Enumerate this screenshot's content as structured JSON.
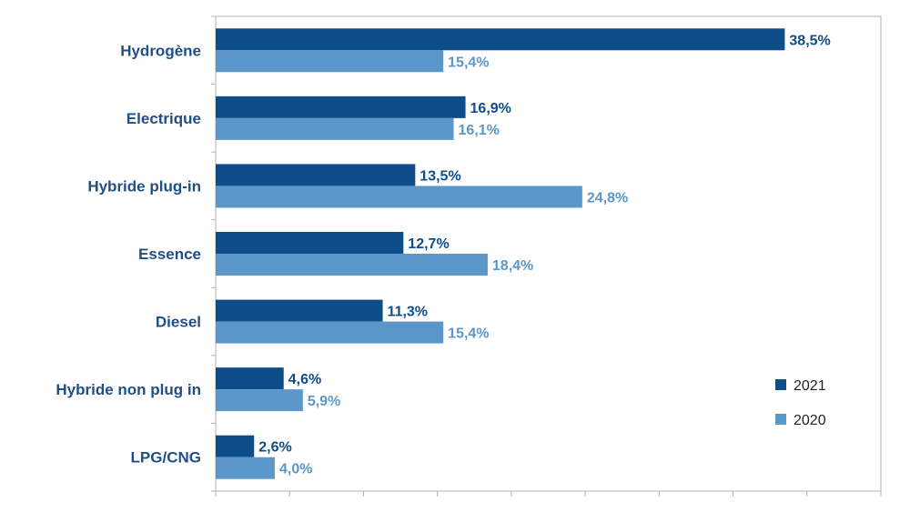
{
  "chart_data": {
    "type": "bar",
    "orientation": "horizontal",
    "categories": [
      "Hydrogène",
      "Electrique",
      "Hybride plug-in",
      "Essence",
      "Diesel",
      "Hybride non plug in",
      "LPG/CNG"
    ],
    "series": [
      {
        "name": "2021",
        "values": [
          38.5,
          16.9,
          13.5,
          12.7,
          11.3,
          4.6,
          2.6
        ],
        "labels": [
          "38,5%",
          "16,9%",
          "13,5%",
          "12,7%",
          "11,3%",
          "4,6%",
          "2,6%"
        ],
        "color": "#0e4d87"
      },
      {
        "name": "2020",
        "values": [
          15.4,
          16.1,
          24.8,
          18.4,
          15.4,
          5.9,
          4.0
        ],
        "labels": [
          "15,4%",
          "16,1%",
          "24,8%",
          "18,4%",
          "15,4%",
          "5,9%",
          "4,0%"
        ],
        "color": "#5b97c9"
      }
    ],
    "xlim": [
      0,
      45
    ],
    "x_ticks": [
      0,
      5,
      10,
      15,
      20,
      25,
      30,
      35,
      40,
      45
    ],
    "title": "",
    "xlabel": "",
    "ylabel": "",
    "grid": false,
    "legend_position": "right",
    "category_label_color": "#1f4f85",
    "axis_color": "#b3b3b3"
  }
}
